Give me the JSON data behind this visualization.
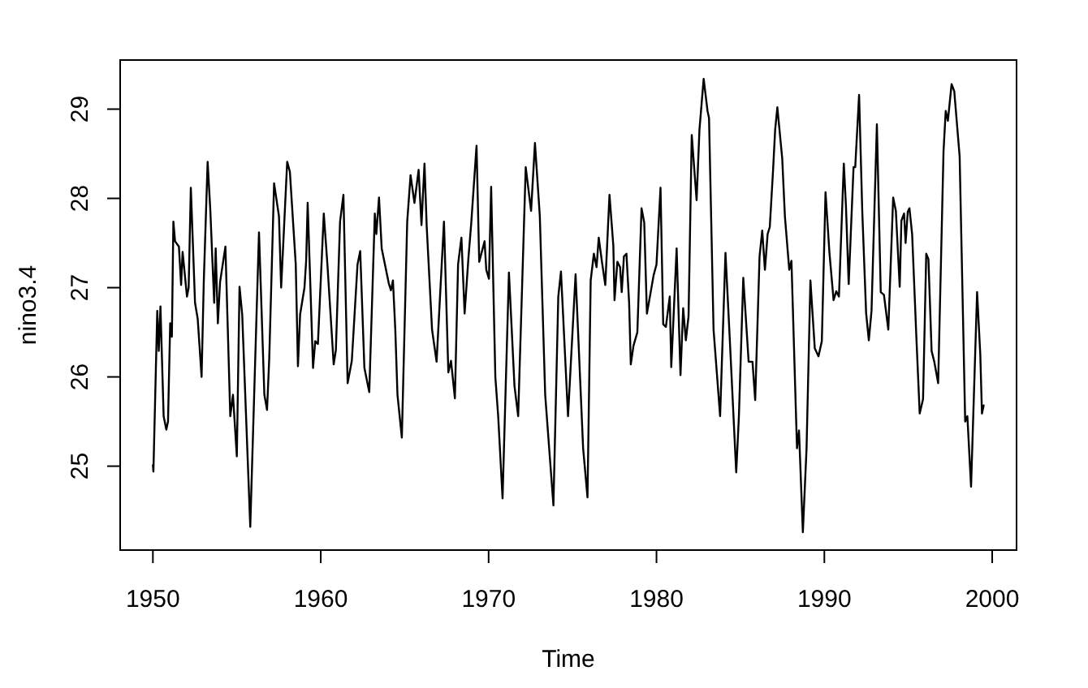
{
  "chart_data": {
    "type": "line",
    "xlabel": "Time",
    "ylabel": "nino3.4",
    "xlim": [
      1948.05,
      2001.45
    ],
    "ylim": [
      24.06,
      29.55
    ],
    "xticks": [
      1950,
      1960,
      1970,
      1980,
      1990,
      2000
    ],
    "yticks": [
      25,
      26,
      27,
      28,
      29
    ],
    "x": [
      1950.0,
      1950.03,
      1950.26,
      1950.35,
      1950.45,
      1950.64,
      1950.8,
      1950.9,
      1951.03,
      1951.13,
      1951.22,
      1951.32,
      1951.55,
      1951.68,
      1951.77,
      1952.03,
      1952.13,
      1952.26,
      1952.51,
      1952.67,
      1952.9,
      1953.03,
      1953.26,
      1953.42,
      1953.65,
      1953.74,
      1953.87,
      1954.0,
      1954.32,
      1954.61,
      1954.77,
      1955.0,
      1955.16,
      1955.32,
      1955.8,
      1956.32,
      1956.64,
      1956.8,
      1956.93,
      1957.22,
      1957.51,
      1957.64,
      1958.0,
      1958.16,
      1958.51,
      1958.64,
      1958.77,
      1959.03,
      1959.13,
      1959.22,
      1959.54,
      1959.67,
      1959.83,
      1960.18,
      1960.4,
      1960.55,
      1960.77,
      1960.9,
      1961.15,
      1961.35,
      1961.6,
      1961.85,
      1962.19,
      1962.35,
      1962.6,
      1962.89,
      1963.22,
      1963.31,
      1963.47,
      1963.63,
      1964.05,
      1964.18,
      1964.3,
      1964.44,
      1964.57,
      1964.83,
      1965.15,
      1965.35,
      1965.58,
      1965.83,
      1966.0,
      1966.18,
      1966.31,
      1966.63,
      1966.9,
      1967.34,
      1967.6,
      1967.76,
      1967.99,
      1968.18,
      1968.38,
      1968.57,
      1968.8,
      1968.96,
      1969.28,
      1969.44,
      1969.76,
      1969.86,
      1970.02,
      1970.15,
      1970.4,
      1970.57,
      1970.83,
      1971.21,
      1971.54,
      1971.76,
      1972.21,
      1972.53,
      1972.76,
      1973.05,
      1973.37,
      1973.86,
      1974.15,
      1974.31,
      1974.73,
      1975.18,
      1975.63,
      1975.89,
      1976.08,
      1976.27,
      1976.43,
      1976.56,
      1976.75,
      1976.95,
      1977.2,
      1977.43,
      1977.5,
      1977.67,
      1977.83,
      1977.93,
      1978.06,
      1978.21,
      1978.37,
      1978.47,
      1978.63,
      1978.86,
      1979.11,
      1979.27,
      1979.43,
      1979.6,
      1979.83,
      1980.0,
      1980.24,
      1980.4,
      1980.56,
      1980.79,
      1980.88,
      1981.04,
      1981.2,
      1981.43,
      1981.59,
      1981.75,
      1981.91,
      1982.1,
      1982.39,
      1982.56,
      1982.81,
      1983.04,
      1983.13,
      1983.4,
      1983.79,
      1984.11,
      1984.37,
      1984.75,
      1984.91,
      1985.17,
      1985.49,
      1985.72,
      1985.88,
      1986.14,
      1986.3,
      1986.46,
      1986.62,
      1986.75,
      1986.94,
      1987.07,
      1987.2,
      1987.49,
      1987.65,
      1987.91,
      1988.04,
      1988.37,
      1988.49,
      1988.72,
      1988.94,
      1989.17,
      1989.43,
      1989.65,
      1989.85,
      1990.07,
      1990.3,
      1990.55,
      1990.71,
      1990.87,
      1991.16,
      1991.29,
      1991.45,
      1991.74,
      1991.84,
      1992.07,
      1992.26,
      1992.49,
      1992.65,
      1992.81,
      1993.13,
      1993.36,
      1993.55,
      1993.81,
      1994.1,
      1994.26,
      1994.49,
      1994.59,
      1994.75,
      1994.84,
      1994.97,
      1995.07,
      1995.23,
      1995.49,
      1995.68,
      1995.88,
      1996.07,
      1996.2,
      1996.39,
      1996.55,
      1996.78,
      1997.1,
      1997.23,
      1997.36,
      1997.58,
      1997.74,
      1998.06,
      1998.39,
      1998.52,
      1998.74,
      1999.1,
      1999.29,
      1999.39,
      1999.49
    ],
    "series": [
      {
        "color": "#000000",
        "values": [
          25.01,
          24.94,
          26.74,
          26.29,
          26.79,
          25.56,
          25.41,
          25.5,
          26.6,
          26.45,
          27.74,
          27.52,
          27.46,
          27.03,
          27.4,
          26.9,
          27.0,
          28.12,
          26.83,
          26.65,
          26.0,
          27.06,
          28.41,
          27.87,
          26.83,
          27.44,
          26.6,
          27.06,
          27.46,
          25.56,
          25.8,
          25.11,
          27.01,
          26.7,
          24.32,
          27.62,
          25.8,
          25.63,
          26.2,
          28.17,
          27.8,
          27.0,
          28.41,
          28.3,
          27.26,
          26.12,
          26.7,
          27.0,
          27.3,
          27.95,
          26.1,
          26.4,
          26.37,
          27.83,
          27.25,
          26.8,
          26.14,
          26.3,
          27.74,
          28.04,
          25.93,
          26.18,
          27.26,
          27.41,
          26.1,
          25.83,
          27.83,
          27.6,
          28.01,
          27.44,
          27.05,
          26.97,
          27.08,
          26.53,
          25.8,
          25.32,
          27.74,
          28.26,
          27.95,
          28.32,
          27.7,
          28.39,
          27.69,
          26.53,
          26.17,
          27.74,
          26.05,
          26.18,
          25.76,
          27.26,
          27.56,
          26.71,
          27.34,
          27.71,
          28.59,
          27.29,
          27.52,
          27.2,
          27.1,
          28.13,
          26.0,
          25.56,
          24.64,
          27.17,
          25.9,
          25.56,
          28.35,
          27.86,
          28.62,
          27.8,
          25.8,
          24.56,
          26.9,
          27.18,
          25.56,
          27.15,
          25.2,
          24.65,
          27.08,
          27.38,
          27.23,
          27.56,
          27.29,
          27.03,
          28.04,
          27.47,
          26.86,
          27.29,
          27.23,
          26.95,
          27.35,
          27.38,
          26.83,
          26.14,
          26.35,
          26.5,
          27.89,
          27.73,
          26.71,
          26.89,
          27.14,
          27.26,
          28.12,
          26.59,
          26.56,
          26.9,
          26.11,
          26.77,
          27.44,
          26.02,
          26.77,
          26.41,
          26.68,
          28.71,
          27.98,
          28.77,
          29.34,
          28.98,
          28.9,
          26.53,
          25.56,
          27.39,
          26.41,
          24.93,
          25.56,
          27.11,
          26.17,
          26.17,
          25.74,
          27.35,
          27.64,
          27.2,
          27.6,
          27.68,
          28.3,
          28.77,
          29.02,
          28.45,
          27.8,
          27.2,
          27.3,
          25.2,
          25.4,
          24.26,
          25.2,
          27.08,
          26.32,
          26.23,
          26.4,
          28.07,
          27.4,
          26.86,
          26.96,
          26.9,
          28.39,
          27.9,
          27.04,
          28.35,
          28.35,
          29.16,
          27.85,
          26.71,
          26.41,
          26.74,
          28.83,
          26.95,
          26.92,
          26.53,
          28.01,
          27.86,
          27.01,
          27.75,
          27.83,
          27.5,
          27.85,
          27.89,
          27.6,
          26.41,
          25.59,
          25.75,
          27.38,
          27.32,
          26.29,
          26.17,
          25.93,
          28.53,
          28.98,
          28.87,
          29.28,
          29.2,
          28.47,
          25.5,
          25.56,
          24.77,
          26.95,
          26.25,
          25.59,
          25.68
        ]
      }
    ]
  }
}
